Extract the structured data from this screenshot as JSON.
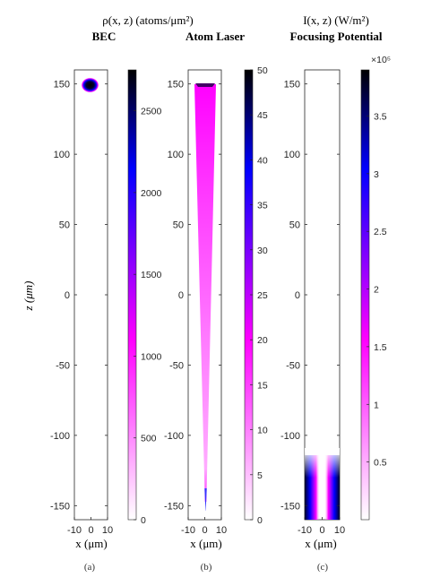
{
  "chart_data": [
    {
      "type": "heatmap",
      "panel": "(a)",
      "title_formula": "ρ(x, z) (atoms/μm²)",
      "title": "BEC",
      "xlabel": "x (μm)",
      "ylabel": "z (μm)",
      "xlim": [
        -10,
        10
      ],
      "ylim": [
        -160,
        160
      ],
      "xticks": [
        "-10",
        "0",
        "10"
      ],
      "yticks": [
        "150",
        "100",
        "50",
        "0",
        "-50",
        "-100",
        "-150"
      ],
      "colorbar": {
        "min": 0,
        "max": 2750,
        "ticks": [
          "0",
          "500",
          "1000",
          "1500",
          "2000",
          "2500"
        ]
      },
      "feature": {
        "kind": "blob",
        "center": [
          0,
          150
        ],
        "radius_x": 4,
        "radius_z": 4,
        "peak": 2750
      }
    },
    {
      "type": "heatmap",
      "panel": "(b)",
      "title": "Atom Laser",
      "xlabel": "x (μm)",
      "xlim": [
        -10,
        10
      ],
      "ylim": [
        -160,
        160
      ],
      "xticks": [
        "-10",
        "0",
        "10"
      ],
      "yticks": [
        "150",
        "100",
        "50",
        "0",
        "-50",
        "-100",
        "-150"
      ],
      "colorbar": {
        "min": 0,
        "max": 50,
        "ticks": [
          "0",
          "5",
          "10",
          "15",
          "20",
          "25",
          "30",
          "35",
          "40",
          "45",
          "50"
        ]
      },
      "feature": {
        "kind": "beam",
        "source_z": 150,
        "end_z": -155,
        "top_halfwidth": 9,
        "bottom_halfwidth": 0.6
      }
    },
    {
      "type": "heatmap",
      "panel": "(c)",
      "title_formula": "I(x, z) (W/m²)",
      "title": "Focusing Potential",
      "xlabel": "x (μm)",
      "xlim": [
        -10,
        10
      ],
      "ylim": [
        -160,
        160
      ],
      "xticks": [
        "-10",
        "0",
        "10"
      ],
      "yticks": [
        "150",
        "100",
        "50",
        "0",
        "-50",
        "-100",
        "-150"
      ],
      "colorbar": {
        "min": 0,
        "max": 390000,
        "exponent_label": "×10⁵",
        "ticks": [
          "0.5",
          "1",
          "1.5",
          "2",
          "2.5",
          "3",
          "3.5"
        ]
      },
      "feature": {
        "kind": "hollow-beam",
        "start_z": -115,
        "end_z": -160
      }
    }
  ],
  "captions": [
    "(a)",
    "(b)",
    "(c)"
  ],
  "colors": {
    "low": "#ffffff",
    "mid": "#ff00ff",
    "high_blue": "#0000ff",
    "top": "#000000"
  }
}
